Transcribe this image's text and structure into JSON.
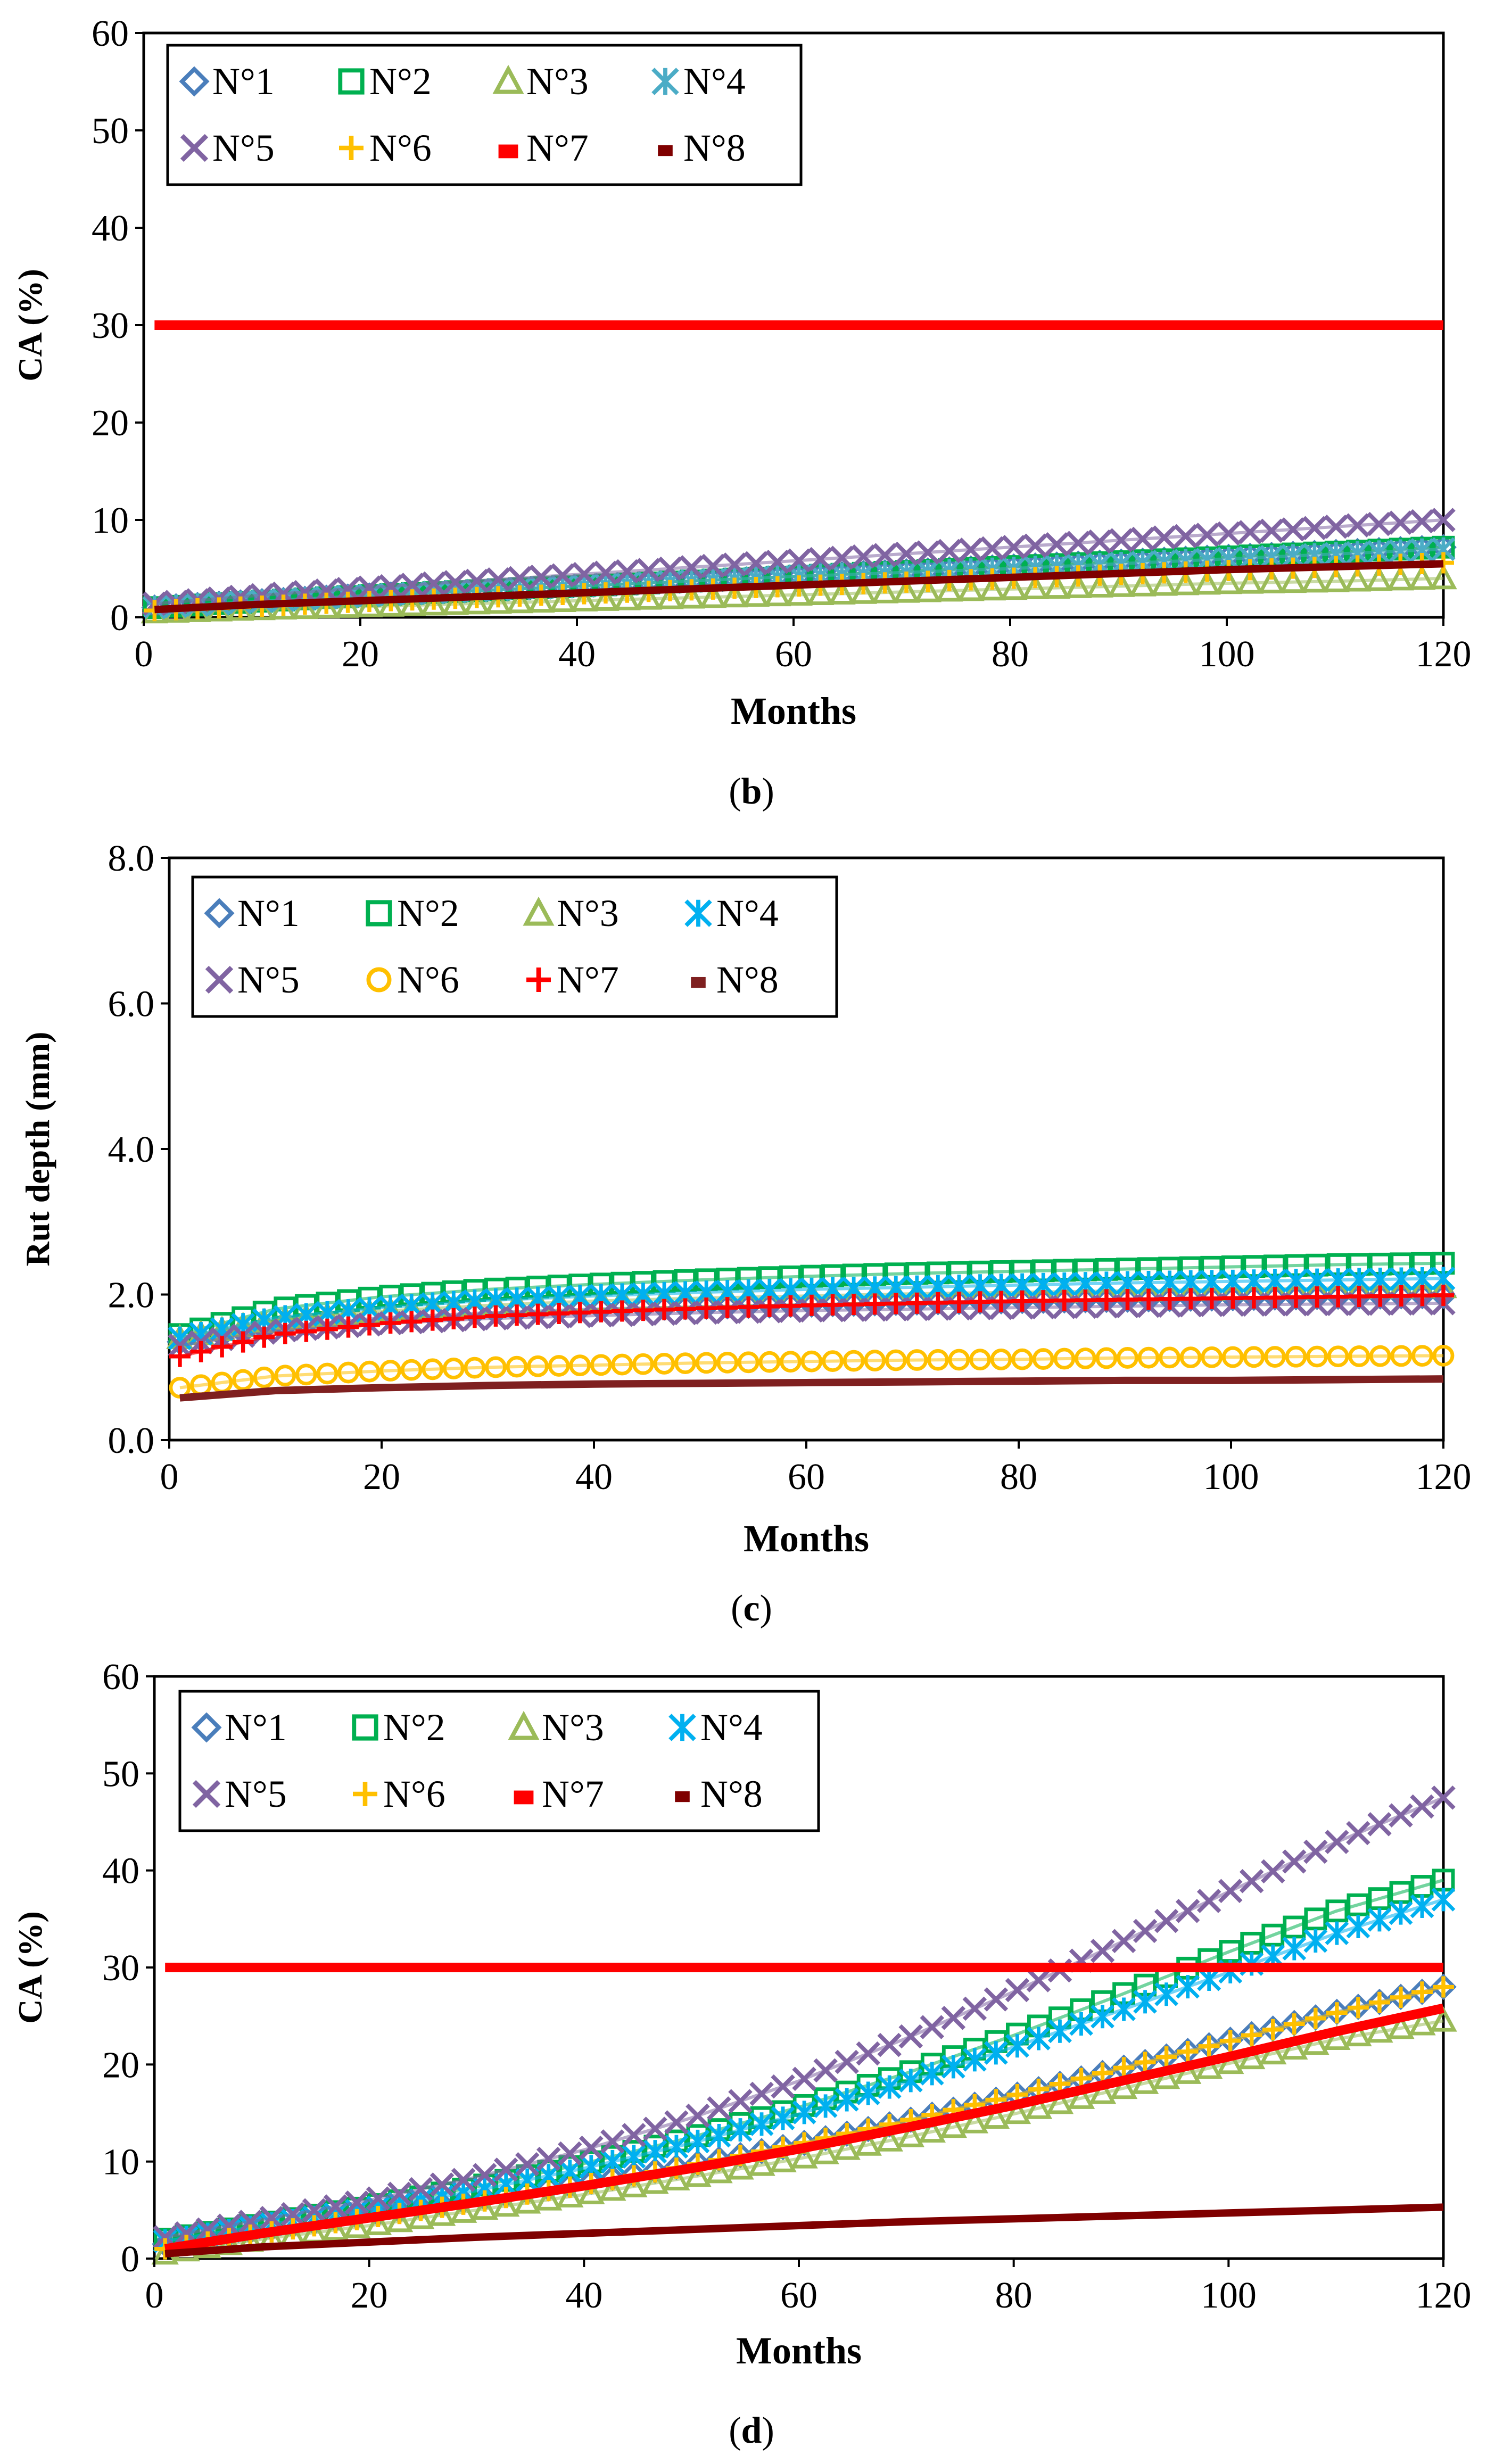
{
  "chart_data": [
    {
      "type": "line",
      "title": "",
      "caption": "(b)",
      "xlabel": "Months",
      "ylabel": "CA (%)",
      "xlim": [
        0,
        120
      ],
      "ylim": [
        0,
        60
      ],
      "xticks": [
        0,
        20,
        40,
        60,
        80,
        100,
        120
      ],
      "yticks": [
        0,
        10,
        20,
        30,
        40,
        50,
        60
      ],
      "ytick_labels": [
        "0",
        "10",
        "20",
        "30",
        "40",
        "50",
        "60"
      ],
      "grid": false,
      "legend_position": "top-left",
      "legend_columns": 4,
      "x": [
        1,
        10,
        20,
        30,
        40,
        50,
        60,
        70,
        80,
        90,
        100,
        110,
        120
      ],
      "series": [
        {
          "name": "N°1",
          "marker": "diamond",
          "color": "#4a7ebb",
          "values": [
            1.0,
            1.6,
            2.2,
            2.7,
            3.2,
            3.7,
            4.2,
            4.7,
            5.2,
            5.7,
            6.2,
            6.7,
            7.2
          ]
        },
        {
          "name": "N°2",
          "marker": "square",
          "color": "#00b050",
          "values": [
            1.0,
            1.6,
            2.2,
            2.7,
            3.2,
            3.7,
            4.2,
            4.7,
            5.2,
            5.7,
            6.2,
            6.7,
            7.2
          ]
        },
        {
          "name": "N°3",
          "marker": "triangle",
          "color": "#9bbb59",
          "values": [
            0.5,
            0.8,
            1.1,
            1.4,
            1.7,
            2.0,
            2.3,
            2.6,
            2.9,
            3.2,
            3.5,
            3.7,
            4.0
          ]
        },
        {
          "name": "N°4",
          "marker": "star",
          "color": "#4bacc6",
          "values": [
            1.0,
            1.6,
            2.2,
            2.7,
            3.2,
            3.7,
            4.2,
            4.6,
            5.0,
            5.5,
            6.0,
            6.5,
            7.0
          ]
        },
        {
          "name": "N°5",
          "marker": "x",
          "color": "#8064a2",
          "values": [
            1.4,
            2.2,
            3.0,
            3.7,
            4.4,
            5.1,
            5.8,
            6.5,
            7.2,
            7.9,
            8.6,
            9.3,
            10.0
          ]
        },
        {
          "name": "N°6",
          "marker": "plus",
          "color": "#ffc000",
          "values": [
            0.7,
            1.1,
            1.6,
            2.0,
            2.4,
            2.8,
            3.2,
            3.6,
            4.0,
            4.4,
            4.8,
            5.2,
            5.6
          ]
        },
        {
          "name": "N°7",
          "marker": "dash",
          "color": "#ff0000",
          "values": [
            30,
            30,
            30,
            30,
            30,
            30,
            30,
            30,
            30,
            30,
            30,
            30,
            30
          ]
        },
        {
          "name": "N°8",
          "marker": "bar",
          "color": "#7f0000",
          "values": [
            0.8,
            1.3,
            1.7,
            2.1,
            2.5,
            2.9,
            3.3,
            3.7,
            4.1,
            4.5,
            4.9,
            5.2,
            5.5
          ]
        }
      ]
    },
    {
      "type": "line",
      "title": "",
      "caption": "(c)",
      "xlabel": "Months",
      "ylabel": "Rut depth (mm)",
      "xlim": [
        0,
        120
      ],
      "ylim": [
        0,
        8
      ],
      "xticks": [
        0,
        20,
        40,
        60,
        80,
        100,
        120
      ],
      "yticks": [
        0,
        2,
        4,
        6,
        8
      ],
      "ytick_labels": [
        "0.0",
        "2.0",
        "4.0",
        "6.0",
        "8.0"
      ],
      "grid": false,
      "legend_position": "top-left",
      "legend_columns": 4,
      "x": [
        1,
        10,
        20,
        30,
        40,
        50,
        60,
        70,
        80,
        90,
        100,
        110,
        120
      ],
      "series": [
        {
          "name": "N°1",
          "marker": "diamond",
          "color": "#4a7ebb",
          "values": [
            1.35,
            1.55,
            1.68,
            1.75,
            1.8,
            1.83,
            1.86,
            1.89,
            1.91,
            1.93,
            1.95,
            1.97,
            1.98
          ]
        },
        {
          "name": "N°2",
          "marker": "square",
          "color": "#00b050",
          "values": [
            1.45,
            1.8,
            1.97,
            2.07,
            2.14,
            2.2,
            2.25,
            2.29,
            2.32,
            2.35,
            2.38,
            2.41,
            2.43
          ]
        },
        {
          "name": "N°3",
          "marker": "triangle",
          "color": "#9bbb59",
          "values": [
            1.4,
            1.65,
            1.77,
            1.85,
            1.91,
            1.95,
            1.98,
            2.01,
            2.03,
            2.05,
            2.07,
            2.09,
            2.1
          ]
        },
        {
          "name": "N°4",
          "marker": "star",
          "color": "#00b0f0",
          "values": [
            1.4,
            1.68,
            1.82,
            1.92,
            1.98,
            2.03,
            2.07,
            2.1,
            2.13,
            2.16,
            2.18,
            2.2,
            2.22
          ]
        },
        {
          "name": "N°5",
          "marker": "x",
          "color": "#8064a2",
          "values": [
            1.3,
            1.5,
            1.6,
            1.67,
            1.71,
            1.75,
            1.78,
            1.8,
            1.82,
            1.84,
            1.86,
            1.87,
            1.88
          ]
        },
        {
          "name": "N°6",
          "marker": "circle",
          "color": "#ffc000",
          "values": [
            0.72,
            0.88,
            0.95,
            1.0,
            1.03,
            1.06,
            1.08,
            1.1,
            1.11,
            1.13,
            1.14,
            1.15,
            1.16
          ]
        },
        {
          "name": "N°7",
          "marker": "plus",
          "color": "#ff0000",
          "values": [
            1.15,
            1.45,
            1.6,
            1.7,
            1.76,
            1.81,
            1.85,
            1.88,
            1.91,
            1.93,
            1.95,
            1.97,
            1.99
          ]
        },
        {
          "name": "N°8",
          "marker": "bar",
          "color": "#7f2020",
          "values": [
            0.58,
            0.68,
            0.72,
            0.75,
            0.77,
            0.78,
            0.79,
            0.8,
            0.81,
            0.82,
            0.82,
            0.83,
            0.84
          ]
        }
      ]
    },
    {
      "type": "line",
      "title": "",
      "caption": "(d)",
      "xlabel": "Months",
      "ylabel": "CA (%)",
      "xlim": [
        0,
        120
      ],
      "ylim": [
        0,
        60
      ],
      "xticks": [
        0,
        20,
        40,
        60,
        80,
        100,
        120
      ],
      "yticks": [
        0,
        10,
        20,
        30,
        40,
        50,
        60
      ],
      "ytick_labels": [
        "0",
        "10",
        "20",
        "30",
        "40",
        "50",
        "60"
      ],
      "grid": false,
      "legend_position": "top-left",
      "legend_columns": 4,
      "x": [
        1,
        10,
        20,
        30,
        40,
        50,
        60,
        70,
        80,
        90,
        100,
        110,
        120
      ],
      "series": [
        {
          "name": "N°1",
          "marker": "diamond",
          "color": "#4a7ebb",
          "values": [
            1.5,
            3.0,
            4.5,
            6.1,
            7.8,
            9.7,
            11.8,
            14.2,
            16.8,
            19.6,
            22.5,
            25.4,
            28.0
          ]
        },
        {
          "name": "N°2",
          "marker": "square",
          "color": "#00b050",
          "values": [
            2.0,
            3.6,
            5.4,
            7.4,
            9.8,
            12.5,
            15.6,
            19.1,
            23.0,
            27.2,
            31.6,
            35.8,
            39.0
          ]
        },
        {
          "name": "N°3",
          "marker": "triangle",
          "color": "#9bbb59",
          "values": [
            0.5,
            2.0,
            3.4,
            5.0,
            6.6,
            8.4,
            10.3,
            12.5,
            14.9,
            17.5,
            20.1,
            22.6,
            24.5
          ]
        },
        {
          "name": "N°4",
          "marker": "star",
          "color": "#00b0f0",
          "values": [
            1.8,
            3.4,
            5.1,
            7.0,
            9.3,
            11.9,
            14.9,
            18.2,
            21.8,
            25.6,
            29.5,
            33.5,
            37.0
          ]
        },
        {
          "name": "N°5",
          "marker": "x",
          "color": "#8064a2",
          "values": [
            2.2,
            4.0,
            6.0,
            8.4,
            11.2,
            14.5,
            18.3,
            22.7,
            27.5,
            32.6,
            37.8,
            42.9,
            47.5
          ]
        },
        {
          "name": "N°6",
          "marker": "plus",
          "color": "#ffc000",
          "values": [
            1.0,
            2.6,
            4.2,
            5.8,
            7.6,
            9.6,
            11.8,
            14.2,
            16.8,
            19.6,
            22.4,
            25.3,
            28.0
          ]
        },
        {
          "name": "N°7",
          "marker": "dash",
          "color": "#ff0000",
          "values": [
            30,
            30,
            30,
            30,
            30,
            30,
            30,
            30,
            30,
            30,
            30,
            30,
            30
          ]
        },
        {
          "name": "N°7",
          "marker": "line",
          "color": "#ff0000",
          "legend": false,
          "values": [
            1.0,
            2.6,
            4.2,
            5.8,
            7.5,
            9.3,
            11.3,
            13.5,
            15.8,
            18.3,
            20.8,
            23.4,
            25.8
          ]
        },
        {
          "name": "N°8",
          "marker": "bar",
          "color": "#7f0000",
          "values": [
            0.5,
            1.2,
            1.7,
            2.2,
            2.6,
            3.0,
            3.4,
            3.8,
            4.1,
            4.4,
            4.7,
            5.0,
            5.3
          ]
        }
      ]
    }
  ]
}
